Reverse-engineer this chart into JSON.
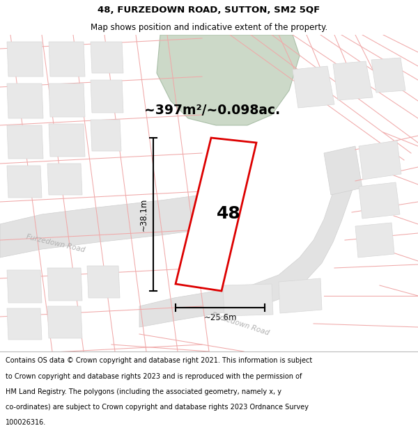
{
  "title": "48, FURZEDOWN ROAD, SUTTON, SM2 5QF",
  "subtitle": "Map shows position and indicative extent of the property.",
  "area_text": "~397m²/~0.098ac.",
  "dim_width": "~25.6m",
  "dim_height": "~38.1m",
  "house_number": "48",
  "footer_line1": "Contains OS data © Crown copyright and database right 2021. This information is subject",
  "footer_line2": "to Crown copyright and database rights 2023 and is reproduced with the permission of",
  "footer_line3": "HM Land Registry. The polygons (including the associated geometry, namely x, y",
  "footer_line4": "co-ordinates) are subject to Crown copyright and database rights 2023 Ordnance Survey",
  "footer_line5": "100026316.",
  "map_bg": "#f8f8f8",
  "plot_line_color": "#dd0000",
  "garden_fill": "#ccd9c8",
  "pink": "#f0a8a8",
  "road_color": "#e2e2e2",
  "road_stroke": "#d0d0d0",
  "block_fill": "#e8e8e8",
  "block_stroke": "#d8d8d8",
  "title_fontsize": 9.5,
  "subtitle_fontsize": 8.5,
  "footer_fontsize": 7.0,
  "area_fontsize": 13.5,
  "dim_fontsize": 8.5,
  "road_label_fontsize": 7.5,
  "num_fontsize": 18
}
